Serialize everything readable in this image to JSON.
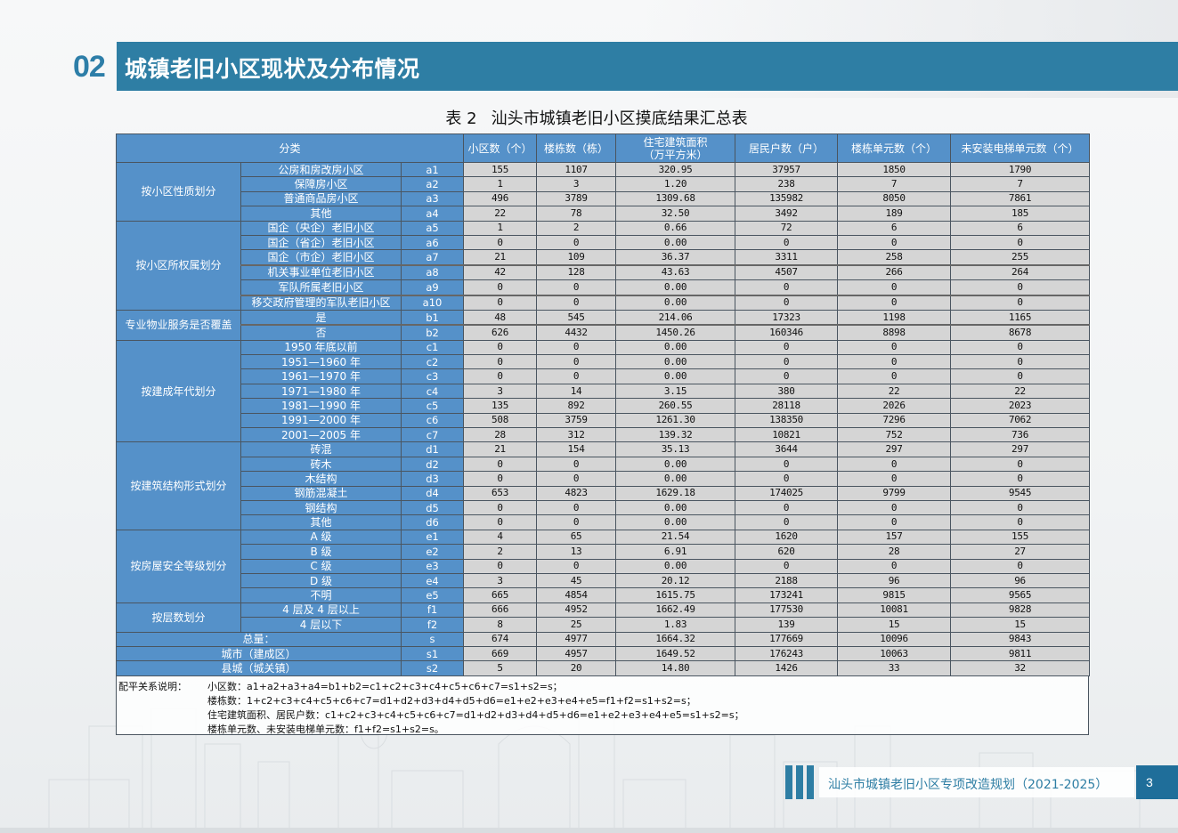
{
  "section": {
    "number": "02",
    "title": "城镇老旧小区现状及分布情况"
  },
  "table": {
    "caption_number": "表 2",
    "caption_title": "汕头市城镇老旧小区摸底结果汇总表",
    "header": {
      "category": "分类",
      "columns": [
        "小区数（个）",
        "楼栋数（栋）",
        "住宅建筑面积\n（万平方米）",
        "居民户数（户）",
        "楼栋单元数（个）",
        "未安装电梯单元数（个）"
      ]
    },
    "groups": [
      {
        "label": "按小区性质划分",
        "rows": [
          {
            "item": "公房和房改房小区",
            "code": "a1",
            "values": [
              "155",
              "1107",
              "320.95",
              "37957",
              "1850",
              "1790"
            ]
          },
          {
            "item": "保障房小区",
            "code": "a2",
            "values": [
              "1",
              "3",
              "1.20",
              "238",
              "7",
              "7"
            ]
          },
          {
            "item": "普通商品房小区",
            "code": "a3",
            "values": [
              "496",
              "3789",
              "1309.68",
              "135982",
              "8050",
              "7861"
            ]
          },
          {
            "item": "其他",
            "code": "a4",
            "values": [
              "22",
              "78",
              "32.50",
              "3492",
              "189",
              "185"
            ]
          }
        ]
      },
      {
        "label": "按小区所权属划分",
        "rows": [
          {
            "item": "国企（央企）老旧小区",
            "code": "a5",
            "values": [
              "1",
              "2",
              "0.66",
              "72",
              "6",
              "6"
            ]
          },
          {
            "item": "国企（省企）老旧小区",
            "code": "a6",
            "values": [
              "0",
              "0",
              "0.00",
              "0",
              "0",
              "0"
            ]
          },
          {
            "item": "国企（市企）老旧小区",
            "code": "a7",
            "values": [
              "21",
              "109",
              "36.37",
              "3311",
              "258",
              "255"
            ]
          },
          {
            "item": "机关事业单位老旧小区",
            "code": "a8",
            "values": [
              "42",
              "128",
              "43.63",
              "4507",
              "266",
              "264"
            ]
          },
          {
            "item": "军队所属老旧小区",
            "code": "a9",
            "values": [
              "0",
              "0",
              "0.00",
              "0",
              "0",
              "0"
            ]
          },
          {
            "item": "移交政府管理的军队老旧小区",
            "code": "a10",
            "values": [
              "0",
              "0",
              "0.00",
              "0",
              "0",
              "0"
            ]
          }
        ]
      },
      {
        "label": "专业物业服务是否覆盖",
        "rows": [
          {
            "item": "是",
            "code": "b1",
            "values": [
              "48",
              "545",
              "214.06",
              "17323",
              "1198",
              "1165"
            ]
          },
          {
            "item": "否",
            "code": "b2",
            "values": [
              "626",
              "4432",
              "1450.26",
              "160346",
              "8898",
              "8678"
            ]
          }
        ]
      },
      {
        "label": "按建成年代划分",
        "rows": [
          {
            "item": "1950 年底以前",
            "code": "c1",
            "values": [
              "0",
              "0",
              "0.00",
              "0",
              "0",
              "0"
            ]
          },
          {
            "item": "1951—1960 年",
            "code": "c2",
            "values": [
              "0",
              "0",
              "0.00",
              "0",
              "0",
              "0"
            ]
          },
          {
            "item": "1961—1970 年",
            "code": "c3",
            "values": [
              "0",
              "0",
              "0.00",
              "0",
              "0",
              "0"
            ]
          },
          {
            "item": "1971—1980 年",
            "code": "c4",
            "values": [
              "3",
              "14",
              "3.15",
              "380",
              "22",
              "22"
            ]
          },
          {
            "item": "1981—1990 年",
            "code": "c5",
            "values": [
              "135",
              "892",
              "260.55",
              "28118",
              "2026",
              "2023"
            ]
          },
          {
            "item": "1991—2000 年",
            "code": "c6",
            "values": [
              "508",
              "3759",
              "1261.30",
              "138350",
              "7296",
              "7062"
            ]
          },
          {
            "item": "2001—2005 年",
            "code": "c7",
            "values": [
              "28",
              "312",
              "139.32",
              "10821",
              "752",
              "736"
            ]
          }
        ]
      },
      {
        "label": "按建筑结构形式划分",
        "rows": [
          {
            "item": "砖混",
            "code": "d1",
            "values": [
              "21",
              "154",
              "35.13",
              "3644",
              "297",
              "297"
            ]
          },
          {
            "item": "砖木",
            "code": "d2",
            "values": [
              "0",
              "0",
              "0.00",
              "0",
              "0",
              "0"
            ]
          },
          {
            "item": "木结构",
            "code": "d3",
            "values": [
              "0",
              "0",
              "0.00",
              "0",
              "0",
              "0"
            ]
          },
          {
            "item": "钢筋混凝土",
            "code": "d4",
            "values": [
              "653",
              "4823",
              "1629.18",
              "174025",
              "9799",
              "9545"
            ]
          },
          {
            "item": "钢结构",
            "code": "d5",
            "values": [
              "0",
              "0",
              "0.00",
              "0",
              "0",
              "0"
            ]
          },
          {
            "item": "其他",
            "code": "d6",
            "values": [
              "0",
              "0",
              "0.00",
              "0",
              "0",
              "0"
            ]
          }
        ]
      },
      {
        "label": "按房屋安全等级划分",
        "rows": [
          {
            "item": "A 级",
            "code": "e1",
            "values": [
              "4",
              "65",
              "21.54",
              "1620",
              "157",
              "155"
            ]
          },
          {
            "item": "B 级",
            "code": "e2",
            "values": [
              "2",
              "13",
              "6.91",
              "620",
              "28",
              "27"
            ]
          },
          {
            "item": "C 级",
            "code": "e3",
            "values": [
              "0",
              "0",
              "0.00",
              "0",
              "0",
              "0"
            ]
          },
          {
            "item": "D 级",
            "code": "e4",
            "values": [
              "3",
              "45",
              "20.12",
              "2188",
              "96",
              "96"
            ]
          },
          {
            "item": "不明",
            "code": "e5",
            "values": [
              "665",
              "4854",
              "1615.75",
              "173241",
              "9815",
              "9565"
            ]
          }
        ]
      },
      {
        "label": "按层数划分",
        "rows": [
          {
            "item": "4 层及 4 层以上",
            "code": "f1",
            "values": [
              "666",
              "4952",
              "1662.49",
              "177530",
              "10081",
              "9828"
            ]
          },
          {
            "item": "4 层以下",
            "code": "f2",
            "values": [
              "8",
              "25",
              "1.83",
              "139",
              "15",
              "15"
            ]
          }
        ]
      }
    ],
    "totals": [
      {
        "label": "总量：",
        "code": "s",
        "values": [
          "674",
          "4977",
          "1664.32",
          "177669",
          "10096",
          "9843"
        ]
      },
      {
        "label": "城市（建成区）",
        "code": "s1",
        "values": [
          "669",
          "4957",
          "1649.52",
          "176243",
          "10063",
          "9811"
        ]
      },
      {
        "label": "县城（城关镇）",
        "code": "s2",
        "values": [
          "5",
          "20",
          "14.80",
          "1426",
          "33",
          "32"
        ]
      }
    ],
    "notes": {
      "label": "配平关系说明：",
      "lines": [
        "小区数：a1+a2+a3+a4=b1+b2=c1+c2+c3+c4+c5+c6+c7=s1+s2=s；",
        "楼栋数：1+c2+c3+c4+c5+c6+c7=d1+d2+d3+d4+d5+d6=e1+e2+e3+e4+e5=f1+f2=s1+s2=s；",
        "住宅建筑面积、居民户数：c1+c2+c3+c4+c5+c6+c7=d1+d2+d3+d4+d5+d6=e1+e2+e3+e4+e5=s1+s2=s；",
        "楼栋单元数、未安装电梯单元数：f1+f2=s1+s2=s。"
      ]
    }
  },
  "footer": {
    "document_title": "汕头市城镇老旧小区专项改造规划（2021-2025）",
    "page_number": "3"
  },
  "colors": {
    "brand_blue": "#2e7ea4",
    "header_cell_blue": "#5591c9",
    "data_cell_gray": "#d5d5d5",
    "page_box_blue": "#1f6e9a"
  }
}
